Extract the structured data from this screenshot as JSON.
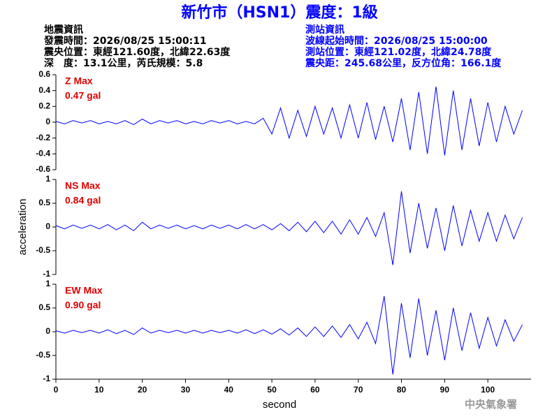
{
  "header": {
    "title": "新竹市（HSN1）震度：1級",
    "left": [
      "地震資訊",
      "發震時間：2026/08/25 15:00:11",
      "震央位置：東經121.60度，北緯22.63度",
      "深　度：13.1公里，芮氏規模：5.8"
    ],
    "right": [
      "測站資訊",
      "波線起始時間：2026/08/25 15:00:00",
      "測站位置：東經121.02度，北緯24.78度",
      "震央距：245.68公里，反方位角：166.1度"
    ]
  },
  "chart_data": [
    {
      "type": "line",
      "name": "Z Max",
      "annotation": "0.47 gal",
      "color": "#0000ff",
      "x": [
        0,
        2,
        4,
        6,
        8,
        10,
        12,
        14,
        16,
        18,
        20,
        22,
        24,
        26,
        28,
        30,
        32,
        34,
        36,
        38,
        40,
        42,
        44,
        46,
        48,
        50,
        52,
        54,
        56,
        58,
        60,
        62,
        64,
        66,
        68,
        70,
        72,
        74,
        76,
        78,
        80,
        82,
        84,
        86,
        88,
        90,
        92,
        94,
        96,
        98,
        100,
        102,
        104,
        106,
        108
      ],
      "values": [
        0.01,
        -0.02,
        0.02,
        -0.01,
        0.02,
        -0.02,
        0.01,
        -0.02,
        0.02,
        -0.03,
        0.04,
        -0.02,
        0.02,
        -0.01,
        0.02,
        -0.02,
        0.01,
        -0.02,
        0.02,
        -0.01,
        0.02,
        -0.02,
        0.01,
        -0.02,
        0.05,
        -0.15,
        0.18,
        -0.2,
        0.15,
        -0.18,
        0.2,
        -0.15,
        0.18,
        -0.2,
        0.22,
        -0.2,
        0.25,
        -0.22,
        0.2,
        -0.25,
        0.3,
        -0.35,
        0.38,
        -0.4,
        0.45,
        -0.42,
        0.4,
        -0.35,
        0.3,
        -0.3,
        0.25,
        -0.25,
        0.2,
        -0.15,
        0.15
      ],
      "xlim": [
        0,
        110
      ],
      "ylim": [
        -0.6,
        0.6
      ],
      "yticks": [
        0.6,
        0.4,
        0.2,
        0,
        -0.2,
        -0.4,
        -0.6
      ]
    },
    {
      "type": "line",
      "name": "NS Max",
      "annotation": "0.84 gal",
      "color": "#0000ff",
      "ylabel": "acceleration",
      "x": [
        0,
        2,
        4,
        6,
        8,
        10,
        12,
        14,
        16,
        18,
        20,
        22,
        24,
        26,
        28,
        30,
        32,
        34,
        36,
        38,
        40,
        42,
        44,
        46,
        48,
        50,
        52,
        54,
        56,
        58,
        60,
        62,
        64,
        66,
        68,
        70,
        72,
        74,
        76,
        78,
        80,
        82,
        84,
        86,
        88,
        90,
        92,
        94,
        96,
        98,
        100,
        102,
        104,
        106,
        108
      ],
      "values": [
        0.03,
        -0.04,
        0.04,
        -0.03,
        0.04,
        -0.04,
        0.05,
        -0.06,
        0.04,
        -0.08,
        0.1,
        -0.04,
        0.04,
        -0.03,
        0.04,
        -0.04,
        0.03,
        -0.04,
        0.04,
        -0.03,
        0.04,
        -0.04,
        0.05,
        -0.04,
        0.05,
        -0.06,
        0.07,
        -0.08,
        0.1,
        -0.1,
        0.12,
        -0.12,
        0.12,
        -0.15,
        0.15,
        -0.15,
        0.2,
        -0.2,
        0.3,
        -0.8,
        0.75,
        -0.55,
        0.5,
        -0.45,
        0.4,
        -0.5,
        0.45,
        -0.4,
        0.35,
        -0.3,
        0.3,
        -0.3,
        0.25,
        -0.25,
        0.2
      ],
      "xlim": [
        0,
        110
      ],
      "ylim": [
        -1,
        1
      ],
      "yticks": [
        1,
        0.5,
        0,
        -0.5,
        -1
      ]
    },
    {
      "type": "line",
      "name": "EW Max",
      "annotation": "0.90 gal",
      "color": "#0000ff",
      "xlabel": "second",
      "x": [
        0,
        2,
        4,
        6,
        8,
        10,
        12,
        14,
        16,
        18,
        20,
        22,
        24,
        26,
        28,
        30,
        32,
        34,
        36,
        38,
        40,
        42,
        44,
        46,
        48,
        50,
        52,
        54,
        56,
        58,
        60,
        62,
        64,
        66,
        68,
        70,
        72,
        74,
        76,
        78,
        80,
        82,
        84,
        86,
        88,
        90,
        92,
        94,
        96,
        98,
        100,
        102,
        104,
        106,
        108
      ],
      "values": [
        0.02,
        -0.03,
        0.03,
        -0.02,
        0.03,
        -0.03,
        0.04,
        -0.04,
        0.03,
        -0.06,
        0.08,
        -0.03,
        0.03,
        -0.02,
        0.03,
        -0.03,
        0.03,
        -0.03,
        0.03,
        -0.02,
        0.03,
        -0.03,
        0.04,
        -0.04,
        0.04,
        -0.05,
        0.06,
        -0.07,
        0.08,
        -0.1,
        0.1,
        -0.1,
        0.12,
        -0.12,
        0.15,
        -0.15,
        0.2,
        -0.25,
        0.75,
        -0.9,
        0.6,
        -0.55,
        0.7,
        -0.5,
        0.45,
        -0.6,
        0.5,
        -0.4,
        0.4,
        -0.35,
        0.3,
        -0.3,
        0.25,
        -0.2,
        0.15
      ],
      "xlim": [
        0,
        110
      ],
      "ylim": [
        -1,
        1
      ],
      "yticks": [
        1,
        0.5,
        0,
        -0.5,
        -1
      ],
      "xticks": [
        0,
        10,
        20,
        30,
        40,
        50,
        60,
        70,
        80,
        90,
        100
      ]
    }
  ],
  "footer": "中央氣象署"
}
